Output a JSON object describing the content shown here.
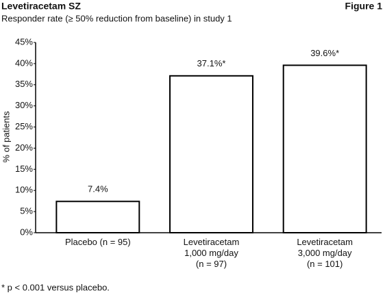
{
  "chart_data": {
    "type": "bar",
    "title": "Levetiracetam SZ",
    "figure_label": "Figure 1",
    "subtitle": "Responder rate (≥ 50% reduction from baseline) in study 1",
    "y_label": "% of patients",
    "categories": [
      "Placebo (n = 95)",
      "Levetiracetam\n1,000 mg/day\n(n = 97)",
      "Levetiracetam\n3,000 mg/day\n(n = 101)"
    ],
    "values": [
      7.4,
      37.1,
      39.6
    ],
    "value_labels": [
      "7.4%",
      "37.1%*",
      "39.6%*"
    ],
    "color": "#ffffff",
    "ylim": [
      0,
      45
    ],
    "yticks": [
      {
        "value": 0,
        "label": "0%"
      },
      {
        "value": 5,
        "label": "5%"
      },
      {
        "value": 10,
        "label": "10%"
      },
      {
        "value": 15,
        "label": "15%"
      },
      {
        "value": 20,
        "label": "20%"
      },
      {
        "value": 25,
        "label": "25%"
      },
      {
        "value": 30,
        "label": "30%"
      },
      {
        "value": 35,
        "label": "35%"
      },
      {
        "value": 40,
        "label": "40%"
      },
      {
        "value": 45,
        "label": "45%"
      }
    ],
    "footnote": "* p < 0.001 versus placebo."
  }
}
